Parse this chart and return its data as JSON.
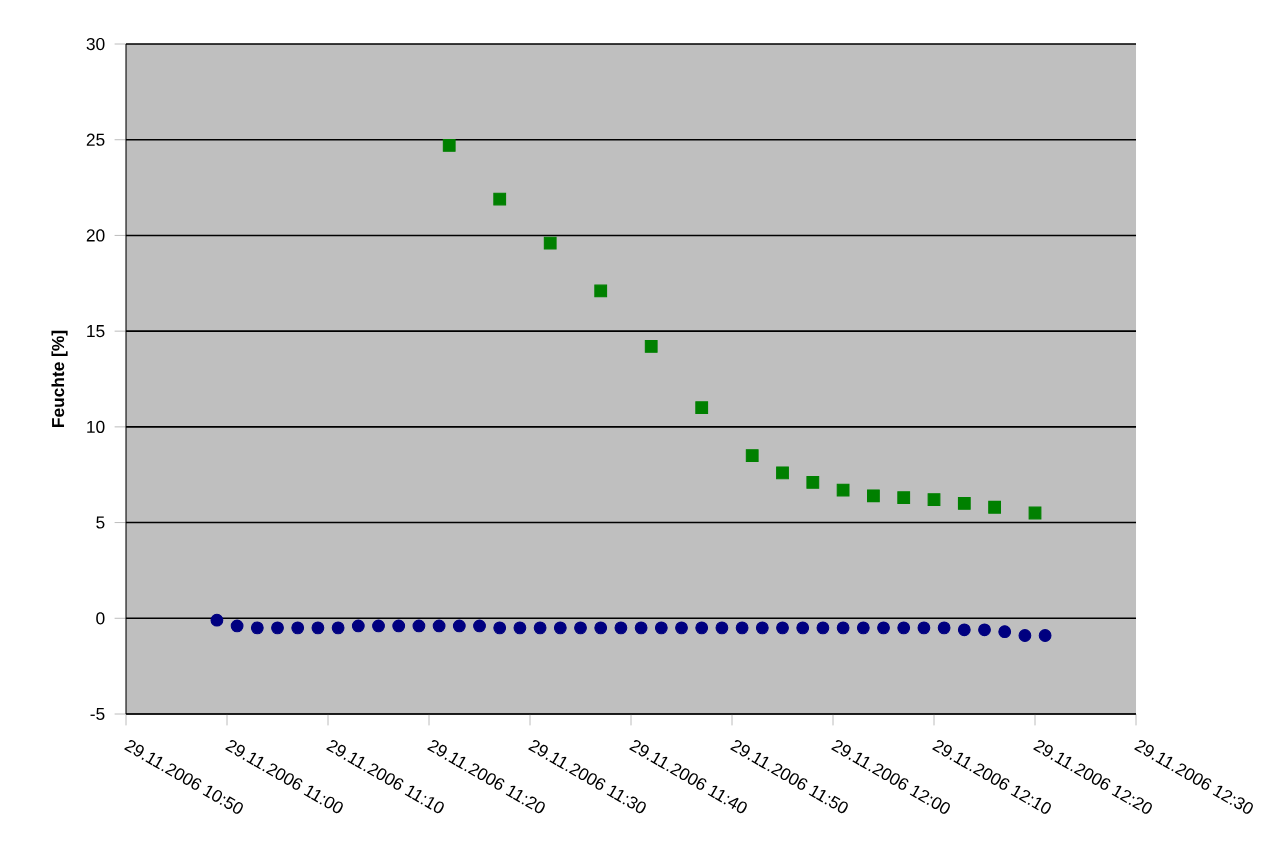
{
  "chart_data": {
    "type": "scatter",
    "ylabel": "Feuchte [%]",
    "xlim": [
      "2006-11-29T10:50",
      "2006-11-29T12:30"
    ],
    "ylim": [
      -5,
      30
    ],
    "xticks": [
      {
        "value": "2006-11-29T10:50",
        "label": "29.11.2006 10:50"
      },
      {
        "value": "2006-11-29T11:00",
        "label": "29.11.2006 11:00"
      },
      {
        "value": "2006-11-29T11:10",
        "label": "29.11.2006 11:10"
      },
      {
        "value": "2006-11-29T11:20",
        "label": "29.11.2006 11:20"
      },
      {
        "value": "2006-11-29T11:30",
        "label": "29.11.2006 11:30"
      },
      {
        "value": "2006-11-29T11:40",
        "label": "29.11.2006 11:40"
      },
      {
        "value": "2006-11-29T11:50",
        "label": "29.11.2006 11:50"
      },
      {
        "value": "2006-11-29T12:00",
        "label": "29.11.2006 12:00"
      },
      {
        "value": "2006-11-29T12:10",
        "label": "29.11.2006 12:10"
      },
      {
        "value": "2006-11-29T12:20",
        "label": "29.11.2006 12:20"
      },
      {
        "value": "2006-11-29T12:30",
        "label": "29.11.2006 12:30"
      }
    ],
    "yticks": [
      -5,
      0,
      5,
      10,
      15,
      20,
      25,
      30
    ],
    "grid": "y",
    "series": [
      {
        "color": "#000080",
        "marker": "circle",
        "x": [
          "2006-11-29T10:59",
          "2006-11-29T11:01",
          "2006-11-29T11:03",
          "2006-11-29T11:05",
          "2006-11-29T11:07",
          "2006-11-29T11:09",
          "2006-11-29T11:11",
          "2006-11-29T11:13",
          "2006-11-29T11:15",
          "2006-11-29T11:17",
          "2006-11-29T11:19",
          "2006-11-29T11:21",
          "2006-11-29T11:23",
          "2006-11-29T11:25",
          "2006-11-29T11:27",
          "2006-11-29T11:29",
          "2006-11-29T11:31",
          "2006-11-29T11:33",
          "2006-11-29T11:35",
          "2006-11-29T11:37",
          "2006-11-29T11:39",
          "2006-11-29T11:41",
          "2006-11-29T11:43",
          "2006-11-29T11:45",
          "2006-11-29T11:47",
          "2006-11-29T11:49",
          "2006-11-29T11:51",
          "2006-11-29T11:53",
          "2006-11-29T11:55",
          "2006-11-29T11:57",
          "2006-11-29T11:59",
          "2006-11-29T12:01",
          "2006-11-29T12:03",
          "2006-11-29T12:05",
          "2006-11-29T12:07",
          "2006-11-29T12:09",
          "2006-11-29T12:11",
          "2006-11-29T12:13",
          "2006-11-29T12:15",
          "2006-11-29T12:17",
          "2006-11-29T12:19",
          "2006-11-29T12:21"
        ],
        "values": [
          -0.1,
          -0.4,
          -0.5,
          -0.5,
          -0.5,
          -0.5,
          -0.5,
          -0.4,
          -0.4,
          -0.4,
          -0.4,
          -0.4,
          -0.4,
          -0.4,
          -0.5,
          -0.5,
          -0.5,
          -0.5,
          -0.5,
          -0.5,
          -0.5,
          -0.5,
          -0.5,
          -0.5,
          -0.5,
          -0.5,
          -0.5,
          -0.5,
          -0.5,
          -0.5,
          -0.5,
          -0.5,
          -0.5,
          -0.5,
          -0.5,
          -0.5,
          -0.5,
          -0.6,
          -0.6,
          -0.7,
          -0.9,
          -0.9
        ]
      },
      {
        "color": "#008000",
        "marker": "square",
        "x": [
          "2006-11-29T11:22",
          "2006-11-29T11:27",
          "2006-11-29T11:32",
          "2006-11-29T11:37",
          "2006-11-29T11:42",
          "2006-11-29T11:47",
          "2006-11-29T11:52",
          "2006-11-29T11:55",
          "2006-11-29T11:58",
          "2006-11-29T12:01",
          "2006-11-29T12:04",
          "2006-11-29T12:07",
          "2006-11-29T12:10",
          "2006-11-29T12:13",
          "2006-11-29T12:16",
          "2006-11-29T12:20"
        ],
        "values": [
          24.7,
          21.9,
          19.6,
          17.1,
          14.2,
          11.0,
          8.5,
          7.6,
          7.1,
          6.7,
          6.4,
          6.3,
          6.2,
          6.0,
          5.8,
          5.5
        ]
      }
    ]
  }
}
